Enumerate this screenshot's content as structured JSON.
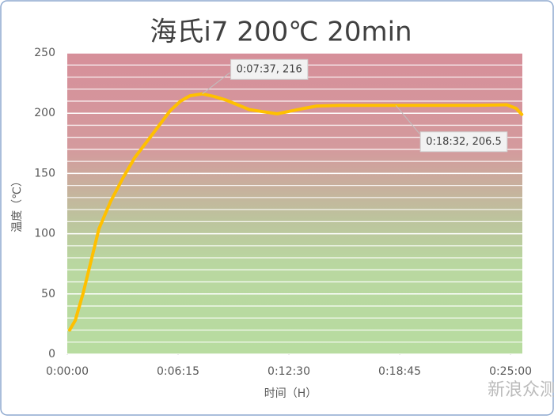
{
  "chart_data": {
    "type": "line",
    "title": "海氏i7 200℃ 20min",
    "y_label": "温度（℃）",
    "x_label": "时间（H）",
    "watermark": "新浪众测",
    "x": [
      8,
      27,
      54,
      80,
      107,
      147,
      188,
      228,
      268,
      308,
      348,
      383,
      415,
      457,
      496,
      536,
      576,
      616,
      670,
      710,
      750,
      790,
      844,
      924,
      1031,
      1112,
      1246,
      1380,
      1487,
      1519,
      1538
    ],
    "series": [
      {
        "name": "温度",
        "color": "#ffc000",
        "values": [
          20,
          28,
          51,
          77,
          104,
          127,
          146,
          163,
          176,
          189,
          202,
          210,
          214.5,
          216,
          214,
          211,
          207,
          203,
          201,
          199.5,
          201.5,
          203.5,
          206,
          206.5,
          206.5,
          206.5,
          206.5,
          206.5,
          207,
          204,
          199
        ]
      }
    ],
    "xlim": [
      0,
      1540
    ],
    "xticks": [
      {
        "value": 0,
        "label": "0:00:00"
      },
      {
        "value": 375,
        "label": "0:06:15"
      },
      {
        "value": 750,
        "label": "0:12:30"
      },
      {
        "value": 1125,
        "label": "0:18:45"
      },
      {
        "value": 1500,
        "label": "0:25:00"
      }
    ],
    "ylim": [
      0,
      250
    ],
    "yticks": [
      0,
      50,
      100,
      150,
      200,
      250
    ],
    "grid": true,
    "annotations": [
      {
        "text": "0:07:37, 216",
        "x": 457,
        "y": 216
      },
      {
        "text": "0:18:32, 206.5",
        "x": 1112,
        "y": 206.5
      }
    ]
  }
}
